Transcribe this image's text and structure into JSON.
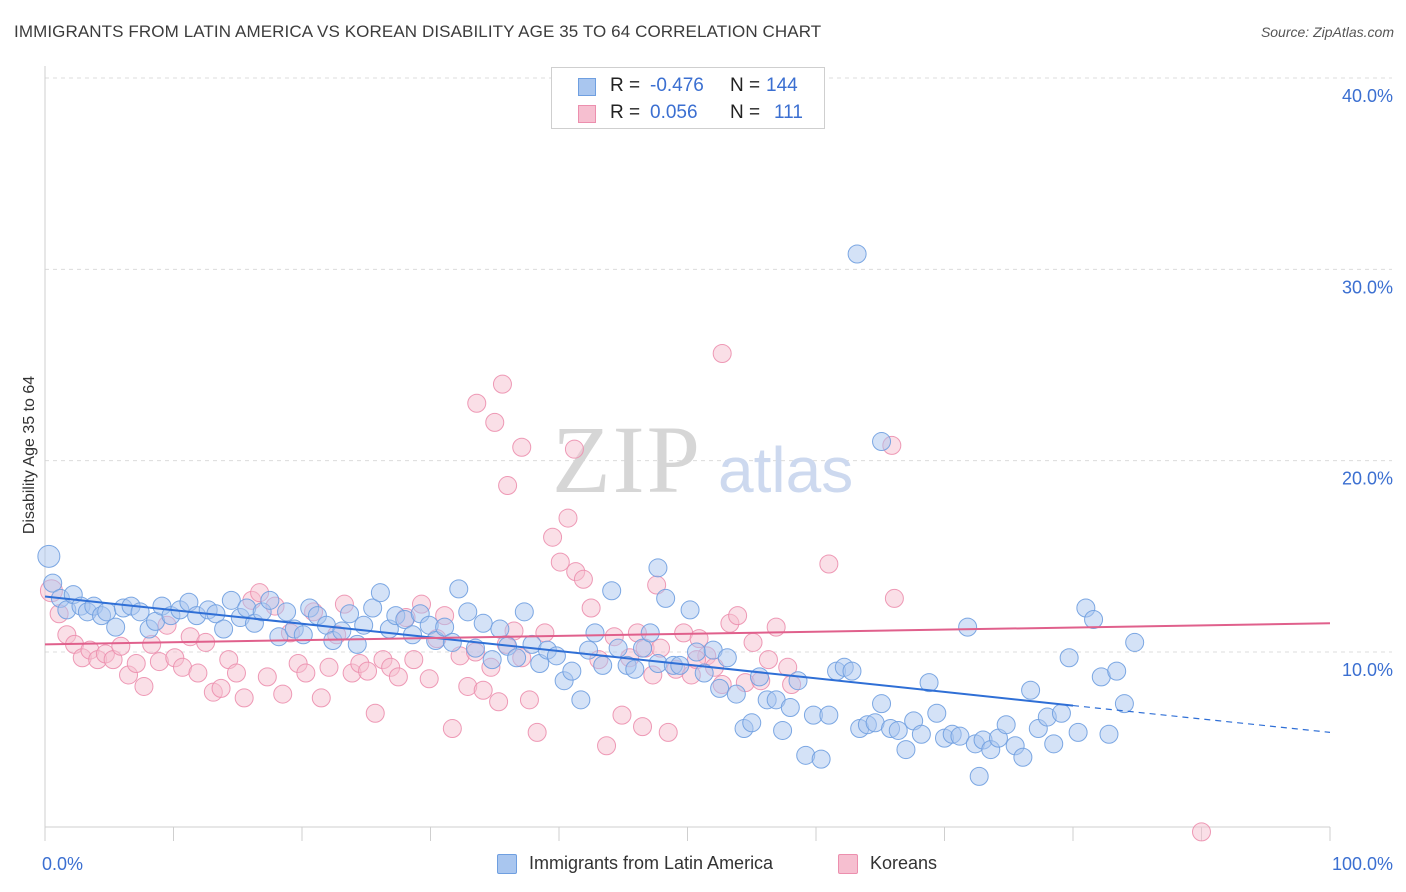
{
  "title": "IMMIGRANTS FROM LATIN AMERICA VS KOREAN DISABILITY AGE 35 TO 64 CORRELATION CHART",
  "source": "Source: ZipAtlas.com",
  "watermark": {
    "zip": "ZIP",
    "atlas": "atlas"
  },
  "colors": {
    "blue_fill": "#a9c6ef",
    "blue_stroke": "#6f9fe0",
    "blue_line": "#2f6fd6",
    "pink_fill": "#f6bfd0",
    "pink_stroke": "#ec8fae",
    "pink_line": "#e0608c",
    "tick_text": "#3b6fd1",
    "grid": "#dcdcdc"
  },
  "legend": {
    "rows": [
      {
        "r_label": "R =",
        "r_value": "-0.476",
        "n_label": "N =",
        "n_value": "144",
        "color": "blue"
      },
      {
        "r_label": "R =",
        "r_value": "0.056",
        "n_label": "N =",
        "n_value": "111",
        "color": "pink"
      }
    ]
  },
  "bottom_legend": [
    {
      "label": "Immigrants from Latin America",
      "color": "blue"
    },
    {
      "label": "Koreans",
      "color": "pink"
    }
  ],
  "chart_data": {
    "type": "scatter",
    "title": "IMMIGRANTS FROM LATIN AMERICA VS KOREAN DISABILITY AGE 35 TO 64 CORRELATION CHART",
    "xlabel": "",
    "ylabel": "Disability Age 35 to 64",
    "xlim": [
      0,
      100
    ],
    "ylim": [
      0,
      42
    ],
    "x_tick_labels": [
      "0.0%",
      "100.0%"
    ],
    "y_ticks": [
      10,
      20,
      30,
      40
    ],
    "y_tick_labels": [
      "10.0%",
      "20.0%",
      "30.0%",
      "40.0%"
    ],
    "grid": true,
    "legend_position": "top-center",
    "series": [
      {
        "name": "Immigrants from Latin America",
        "color": "blue",
        "r": -0.476,
        "n": 144,
        "trend": {
          "x0": 0,
          "y0": 12.9,
          "x1": 80,
          "y1": 7.2,
          "dash_to_x": 100,
          "dash_to_y": 5.8
        },
        "points": [
          [
            0.3,
            15.0
          ],
          [
            0.6,
            13.6
          ],
          [
            1.2,
            12.8
          ],
          [
            1.7,
            12.2
          ],
          [
            2.2,
            13.0
          ],
          [
            2.8,
            12.4
          ],
          [
            3.3,
            12.1
          ],
          [
            3.8,
            12.4
          ],
          [
            4.4,
            11.9
          ],
          [
            4.8,
            12.1
          ],
          [
            5.5,
            11.3
          ],
          [
            6.1,
            12.3
          ],
          [
            6.7,
            12.4
          ],
          [
            7.4,
            12.1
          ],
          [
            8.1,
            11.2
          ],
          [
            8.6,
            11.6
          ],
          [
            9.1,
            12.4
          ],
          [
            9.8,
            11.9
          ],
          [
            10.5,
            12.2
          ],
          [
            11.2,
            12.6
          ],
          [
            11.8,
            11.9
          ],
          [
            12.7,
            12.2
          ],
          [
            13.3,
            12.0
          ],
          [
            13.9,
            11.2
          ],
          [
            14.5,
            12.7
          ],
          [
            15.2,
            11.8
          ],
          [
            15.7,
            12.3
          ],
          [
            16.3,
            11.5
          ],
          [
            16.9,
            12.1
          ],
          [
            17.5,
            12.7
          ],
          [
            18.2,
            10.8
          ],
          [
            18.8,
            12.1
          ],
          [
            19.4,
            11.2
          ],
          [
            20.1,
            10.9
          ],
          [
            20.6,
            12.3
          ],
          [
            21.2,
            11.9
          ],
          [
            21.9,
            11.4
          ],
          [
            22.4,
            10.6
          ],
          [
            23.1,
            11.1
          ],
          [
            23.7,
            12.0
          ],
          [
            24.3,
            10.4
          ],
          [
            24.8,
            11.4
          ],
          [
            25.5,
            12.3
          ],
          [
            26.1,
            13.1
          ],
          [
            26.8,
            11.2
          ],
          [
            27.3,
            11.9
          ],
          [
            28.0,
            11.7
          ],
          [
            28.6,
            10.9
          ],
          [
            29.2,
            12.0
          ],
          [
            29.9,
            11.4
          ],
          [
            30.4,
            10.6
          ],
          [
            31.1,
            11.3
          ],
          [
            31.7,
            10.5
          ],
          [
            32.2,
            13.3
          ],
          [
            32.9,
            12.1
          ],
          [
            33.5,
            10.2
          ],
          [
            34.1,
            11.5
          ],
          [
            34.8,
            9.6
          ],
          [
            35.4,
            11.2
          ],
          [
            36.0,
            10.3
          ],
          [
            36.7,
            9.7
          ],
          [
            37.3,
            12.1
          ],
          [
            37.9,
            10.4
          ],
          [
            38.5,
            9.4
          ],
          [
            39.1,
            10.1
          ],
          [
            39.8,
            9.8
          ],
          [
            40.4,
            8.5
          ],
          [
            41.0,
            9.0
          ],
          [
            41.7,
            7.5
          ],
          [
            42.3,
            10.1
          ],
          [
            42.8,
            11.0
          ],
          [
            43.4,
            9.3
          ],
          [
            44.1,
            13.2
          ],
          [
            44.6,
            10.2
          ],
          [
            45.3,
            9.3
          ],
          [
            45.9,
            9.1
          ],
          [
            46.5,
            10.2
          ],
          [
            47.1,
            11.0
          ],
          [
            47.7,
            9.4
          ],
          [
            48.3,
            12.8
          ],
          [
            48.9,
            9.3
          ],
          [
            49.4,
            9.3
          ],
          [
            50.2,
            12.2
          ],
          [
            50.7,
            10.0
          ],
          [
            51.3,
            8.9
          ],
          [
            52.0,
            10.1
          ],
          [
            52.5,
            8.1
          ],
          [
            53.1,
            9.7
          ],
          [
            53.8,
            7.8
          ],
          [
            54.4,
            6.0
          ],
          [
            55.0,
            6.3
          ],
          [
            55.6,
            8.7
          ],
          [
            56.2,
            7.5
          ],
          [
            56.9,
            7.5
          ],
          [
            57.4,
            5.9
          ],
          [
            58.0,
            7.1
          ],
          [
            58.6,
            8.5
          ],
          [
            59.2,
            4.6
          ],
          [
            59.8,
            6.7
          ],
          [
            60.4,
            4.4
          ],
          [
            61.0,
            6.7
          ],
          [
            61.6,
            9.0
          ],
          [
            62.2,
            9.2
          ],
          [
            62.8,
            9.0
          ],
          [
            63.4,
            6.0
          ],
          [
            64.0,
            6.2
          ],
          [
            64.6,
            6.3
          ],
          [
            65.1,
            7.3
          ],
          [
            65.8,
            6.0
          ],
          [
            66.4,
            5.9
          ],
          [
            67.0,
            4.9
          ],
          [
            67.6,
            6.4
          ],
          [
            68.2,
            5.7
          ],
          [
            68.8,
            8.4
          ],
          [
            69.4,
            6.8
          ],
          [
            70.0,
            5.5
          ],
          [
            70.6,
            5.7
          ],
          [
            71.2,
            5.6
          ],
          [
            71.8,
            11.3
          ],
          [
            72.4,
            5.2
          ],
          [
            73.0,
            5.4
          ],
          [
            73.6,
            4.9
          ],
          [
            74.2,
            5.5
          ],
          [
            74.8,
            6.2
          ],
          [
            75.5,
            5.1
          ],
          [
            76.1,
            4.5
          ],
          [
            76.7,
            8.0
          ],
          [
            77.3,
            6.0
          ],
          [
            78.0,
            6.6
          ],
          [
            78.5,
            5.2
          ],
          [
            79.1,
            6.8
          ],
          [
            79.7,
            9.7
          ],
          [
            80.4,
            5.8
          ],
          [
            81.0,
            12.3
          ],
          [
            81.6,
            11.7
          ],
          [
            82.2,
            8.7
          ],
          [
            82.8,
            5.7
          ],
          [
            83.4,
            9.0
          ],
          [
            84.0,
            7.3
          ],
          [
            84.8,
            10.5
          ],
          [
            63.2,
            30.8
          ],
          [
            65.1,
            21.0
          ],
          [
            47.7,
            14.4
          ],
          [
            72.7,
            3.5
          ]
        ]
      },
      {
        "name": "Koreans",
        "color": "pink",
        "r": 0.056,
        "n": 111,
        "trend": {
          "x0": 0,
          "y0": 10.4,
          "x1": 100,
          "y1": 11.5
        },
        "points": [
          [
            0.5,
            13.2
          ],
          [
            1.1,
            12.0
          ],
          [
            1.7,
            10.9
          ],
          [
            2.3,
            10.4
          ],
          [
            2.9,
            9.7
          ],
          [
            3.5,
            10.1
          ],
          [
            4.1,
            9.6
          ],
          [
            4.7,
            9.9
          ],
          [
            5.3,
            9.6
          ],
          [
            5.9,
            10.3
          ],
          [
            6.5,
            8.8
          ],
          [
            7.1,
            9.4
          ],
          [
            7.7,
            8.2
          ],
          [
            8.3,
            10.4
          ],
          [
            8.9,
            9.5
          ],
          [
            9.5,
            11.4
          ],
          [
            10.1,
            9.7
          ],
          [
            10.7,
            9.2
          ],
          [
            11.3,
            10.8
          ],
          [
            11.9,
            8.9
          ],
          [
            12.5,
            10.5
          ],
          [
            13.1,
            7.9
          ],
          [
            13.7,
            8.1
          ],
          [
            14.3,
            9.6
          ],
          [
            14.9,
            8.9
          ],
          [
            15.5,
            7.6
          ],
          [
            16.1,
            12.7
          ],
          [
            16.7,
            13.1
          ],
          [
            17.3,
            8.7
          ],
          [
            17.9,
            12.4
          ],
          [
            18.5,
            7.8
          ],
          [
            19.1,
            11.0
          ],
          [
            19.7,
            9.4
          ],
          [
            20.3,
            8.9
          ],
          [
            20.9,
            12.1
          ],
          [
            21.5,
            7.6
          ],
          [
            22.1,
            9.2
          ],
          [
            22.7,
            10.9
          ],
          [
            23.3,
            12.5
          ],
          [
            23.9,
            8.9
          ],
          [
            24.5,
            9.4
          ],
          [
            25.1,
            9.0
          ],
          [
            25.7,
            6.8
          ],
          [
            26.3,
            9.6
          ],
          [
            26.9,
            9.2
          ],
          [
            27.5,
            8.7
          ],
          [
            28.1,
            11.8
          ],
          [
            28.7,
            9.6
          ],
          [
            29.3,
            12.5
          ],
          [
            29.9,
            8.6
          ],
          [
            30.5,
            10.7
          ],
          [
            31.1,
            11.9
          ],
          [
            31.7,
            6.0
          ],
          [
            32.3,
            9.8
          ],
          [
            32.9,
            8.2
          ],
          [
            33.5,
            10.0
          ],
          [
            34.1,
            8.0
          ],
          [
            34.7,
            9.2
          ],
          [
            35.3,
            7.4
          ],
          [
            35.9,
            10.4
          ],
          [
            36.5,
            11.1
          ],
          [
            37.1,
            9.7
          ],
          [
            37.7,
            7.5
          ],
          [
            38.3,
            5.8
          ],
          [
            38.9,
            11.0
          ],
          [
            39.5,
            16.0
          ],
          [
            40.1,
            14.7
          ],
          [
            40.7,
            17.0
          ],
          [
            41.3,
            14.2
          ],
          [
            41.9,
            13.8
          ],
          [
            42.5,
            12.3
          ],
          [
            43.1,
            9.6
          ],
          [
            43.7,
            5.1
          ],
          [
            44.3,
            10.8
          ],
          [
            44.9,
            6.7
          ],
          [
            45.5,
            9.7
          ],
          [
            46.1,
            11.0
          ],
          [
            46.7,
            10.2
          ],
          [
            47.3,
            8.8
          ],
          [
            47.9,
            10.2
          ],
          [
            48.5,
            5.8
          ],
          [
            49.1,
            9.1
          ],
          [
            49.7,
            11.0
          ],
          [
            50.3,
            8.8
          ],
          [
            50.9,
            10.7
          ],
          [
            51.5,
            9.8
          ],
          [
            52.1,
            9.2
          ],
          [
            52.7,
            8.3
          ],
          [
            53.3,
            11.5
          ],
          [
            53.9,
            11.9
          ],
          [
            54.5,
            8.4
          ],
          [
            55.1,
            10.5
          ],
          [
            55.7,
            8.5
          ],
          [
            56.3,
            9.6
          ],
          [
            56.9,
            11.3
          ],
          [
            65.9,
            20.8
          ],
          [
            52.7,
            25.6
          ],
          [
            35.6,
            24.0
          ],
          [
            35.0,
            22.0
          ],
          [
            33.6,
            23.0
          ],
          [
            41.2,
            20.6
          ],
          [
            37.1,
            20.7
          ],
          [
            36.0,
            18.7
          ],
          [
            61.0,
            14.6
          ],
          [
            90.0,
            0.6
          ],
          [
            66.1,
            12.8
          ],
          [
            58.1,
            8.3
          ],
          [
            50.7,
            9.6
          ],
          [
            46.5,
            6.1
          ],
          [
            57.8,
            9.2
          ],
          [
            47.6,
            13.5
          ]
        ]
      }
    ]
  }
}
